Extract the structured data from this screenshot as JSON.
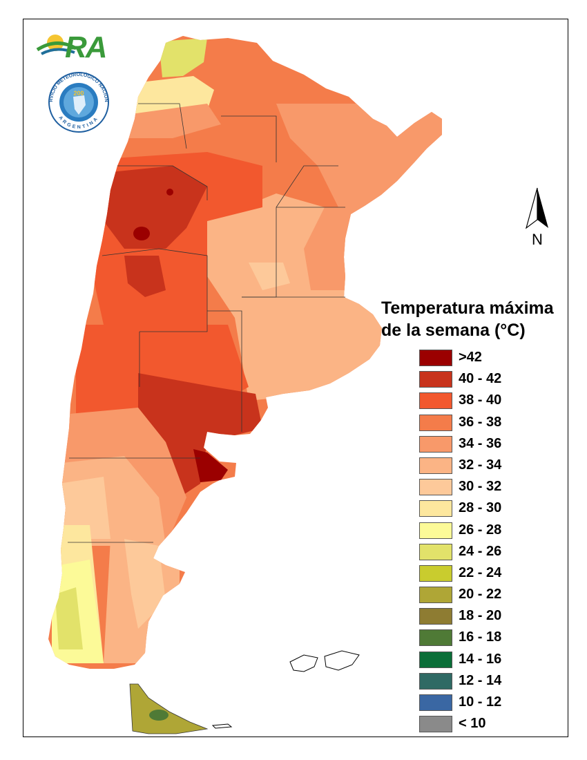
{
  "logos": {
    "ora_text": "RA",
    "smn_ring_top": "SERVICIO METEOROLÓGICO NACIONAL",
    "smn_ring_bottom": "ARGENTINA",
    "smn_center": "200"
  },
  "north_arrow": {
    "label": "N",
    "icon": "north-arrow-icon"
  },
  "legend": {
    "title": "Temperatura máxima\nde la semana (°C)",
    "items": [
      {
        "label": ">42",
        "color": "#9b0000"
      },
      {
        "label": "40 - 42",
        "color": "#c8331c"
      },
      {
        "label": "38 - 40",
        "color": "#f2582e"
      },
      {
        "label": "36 - 38",
        "color": "#f47c4a"
      },
      {
        "label": "34 - 36",
        "color": "#f8996a"
      },
      {
        "label": "32 - 34",
        "color": "#fbb485"
      },
      {
        "label": "30 - 32",
        "color": "#fdc99a"
      },
      {
        "label": "28 - 30",
        "color": "#fde79e"
      },
      {
        "label": "26 - 28",
        "color": "#fcfa98"
      },
      {
        "label": "24 - 26",
        "color": "#e2e26a"
      },
      {
        "label": "22 - 24",
        "color": "#c9cc2e"
      },
      {
        "label": "20 - 22",
        "color": "#afa636"
      },
      {
        "label": "18 - 20",
        "color": "#8e7c32"
      },
      {
        "label": "16 - 18",
        "color": "#4f7a36"
      },
      {
        "label": "14 - 16",
        "color": "#0a6e38"
      },
      {
        "label": "12 - 14",
        "color": "#2f6a64"
      },
      {
        "label": "10 - 12",
        "color": "#3a67a3"
      },
      {
        "label": "< 10",
        "color": "#8a8a8a"
      }
    ]
  }
}
